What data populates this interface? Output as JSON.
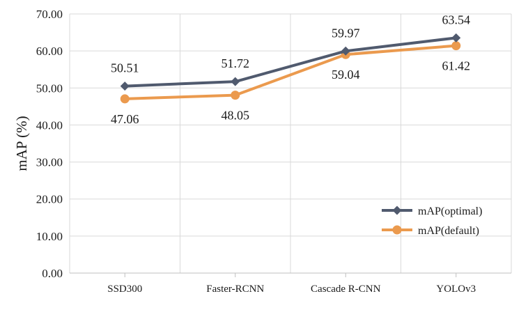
{
  "chart_data": {
    "type": "line",
    "title": "",
    "xlabel": "",
    "ylabel": "mAP (%)",
    "categories": [
      "SSD300",
      "Faster-RCNN",
      "Cascade R-CNN",
      "YOLOv3"
    ],
    "ylim": [
      0,
      70
    ],
    "yticks": [
      "0.00",
      "10.00",
      "20.00",
      "30.00",
      "40.00",
      "50.00",
      "60.00",
      "70.00"
    ],
    "grid": "on",
    "legend_position": "bottom-right",
    "series": [
      {
        "name": "mAP(optimal)",
        "values": [
          50.51,
          51.72,
          59.97,
          63.54
        ],
        "labels": [
          "50.51",
          "51.72",
          "59.97",
          "63.54"
        ],
        "label_position": "above",
        "marker": "diamond",
        "color": "#505a6e"
      },
      {
        "name": "mAP(default)",
        "values": [
          47.06,
          48.05,
          59.04,
          61.42
        ],
        "labels": [
          "47.06",
          "48.05",
          "59.04",
          "61.42"
        ],
        "label_position": "below",
        "marker": "circle",
        "color": "#eb9a4e"
      }
    ]
  }
}
